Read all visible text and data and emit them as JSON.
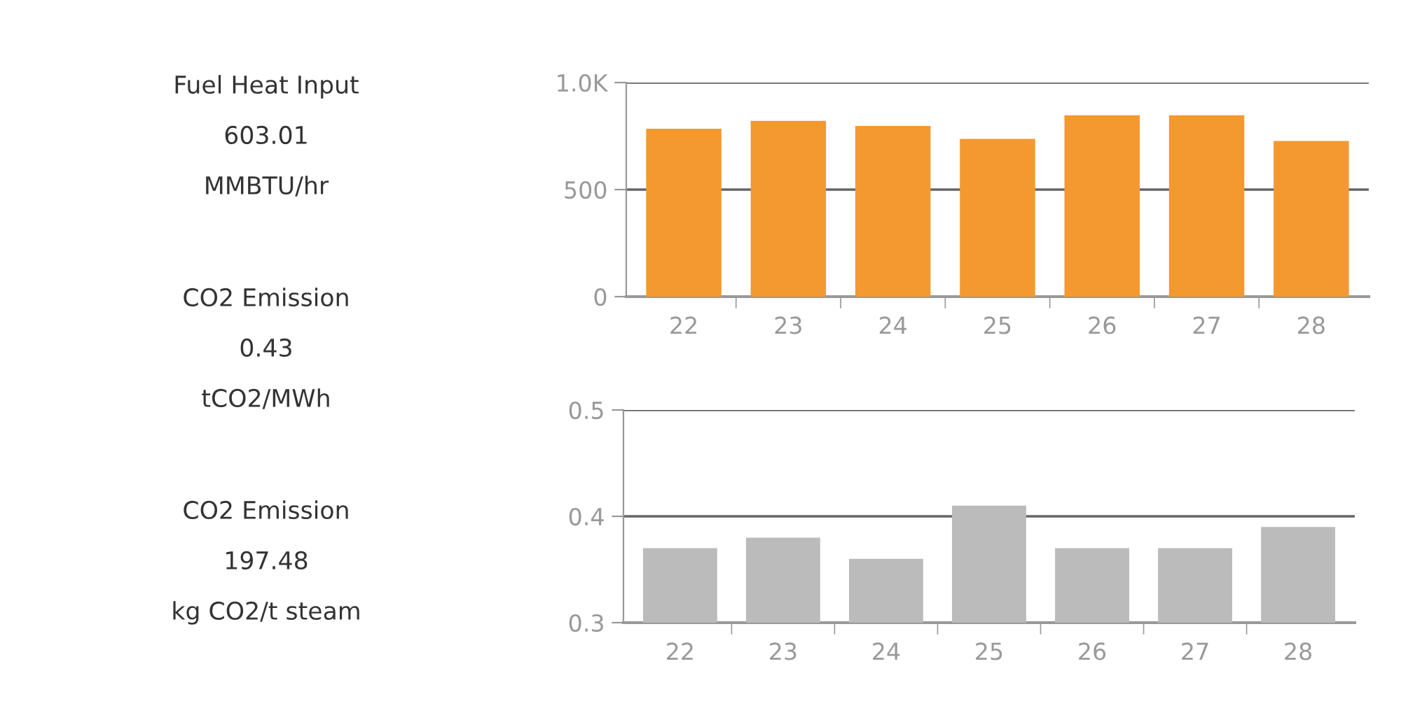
{
  "chart_data": [
    {
      "type": "other",
      "annotations": [
        "Fuel Heat Input",
        "603.01",
        "MMBTU/hr",
        "CO2 Emission",
        "0.43",
        "tCO2/MWh",
        "CO2 Emission",
        "197.48",
        "kg CO2/t steam"
      ]
    },
    {
      "type": "bar",
      "categories": [
        "22",
        "23",
        "24",
        "25",
        "26",
        "27",
        "28"
      ],
      "values": [
        784,
        821,
        797,
        737,
        847,
        847,
        727
      ],
      "color": "#f39930",
      "ylim": [
        0,
        1000
      ],
      "yticks": [
        0,
        500,
        {
          "value": 1000,
          "label": "1.0K"
        }
      ],
      "grid": "y"
    },
    {
      "type": "bar",
      "categories": [
        "22",
        "23",
        "24",
        "25",
        "26",
        "27",
        "28"
      ],
      "values": [
        0.37,
        0.38,
        0.36,
        0.41,
        0.37,
        0.37,
        0.39
      ],
      "color": "#bbbbbb",
      "ylim": [
        0.3,
        0.5
      ],
      "yticks": [
        0.3,
        0.4,
        0.5
      ],
      "grid": "y"
    }
  ]
}
